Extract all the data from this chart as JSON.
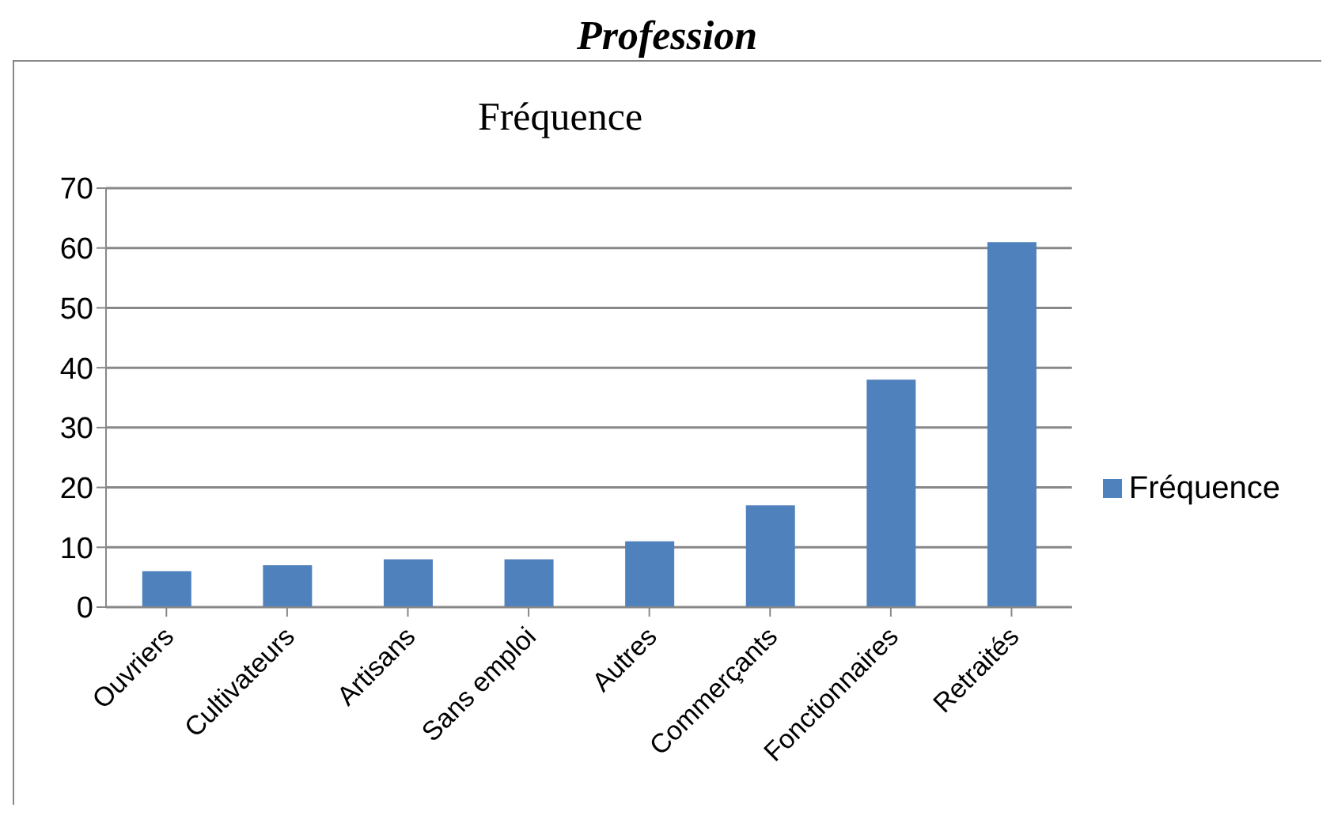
{
  "chart_data": {
    "type": "bar",
    "title": "Profession",
    "subtitle": "Fréquence",
    "categories": [
      "Ouvriers",
      "Cultivateurs",
      "Artisans",
      "Sans emploi",
      "Autres",
      "Commerçants",
      "Fonctionnaires",
      "Retraités"
    ],
    "series": [
      {
        "name": "Fréquence",
        "color": "#4f81bd",
        "values": [
          6,
          7,
          8,
          8,
          11,
          17,
          38,
          61
        ]
      }
    ],
    "ylim": [
      0,
      70
    ],
    "yticks": [
      0,
      10,
      20,
      30,
      40,
      50,
      60,
      70
    ],
    "grid": "y",
    "legend": "right"
  }
}
